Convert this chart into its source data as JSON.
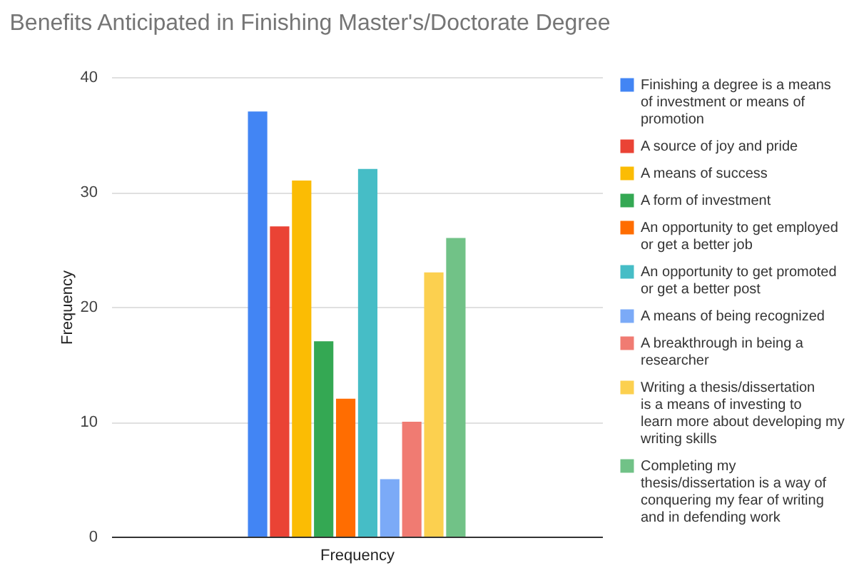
{
  "chart_data": {
    "type": "bar",
    "title": "Benefits Anticipated in Finishing Master's/Doctorate Degree",
    "xlabel": "Frequency",
    "ylabel": "Frequency",
    "categories": [
      null
    ],
    "series": [
      {
        "name": "Finishing a degree is a means of investment or means of promotion",
        "color": "#4285f4",
        "values": [
          37
        ]
      },
      {
        "name": "A source of joy and pride",
        "color": "#ea4335",
        "values": [
          27
        ]
      },
      {
        "name": "A means of success",
        "color": "#fbbc04",
        "values": [
          31
        ]
      },
      {
        "name": "A form of investment",
        "color": "#34a853",
        "values": [
          17
        ]
      },
      {
        "name": "An opportunity to get employed or get a better job",
        "color": "#ff6d01",
        "values": [
          12
        ]
      },
      {
        "name": "An opportunity to get promoted or get a better post",
        "color": "#46bdc6",
        "values": [
          32
        ]
      },
      {
        "name": "A means of being recognized",
        "color": "#7baaf7",
        "values": [
          5
        ]
      },
      {
        "name": "A breakthrough in being a researcher",
        "color": "#f07b72",
        "values": [
          10
        ]
      },
      {
        "name": "Writing a thesis/dissertation is a means of investing to learn more about developing my writing skills",
        "color": "#fcd04f",
        "values": [
          23
        ]
      },
      {
        "name": "Completing my thesis/dissertation is a way of conquering my fear of writing and in defending work",
        "color": "#71c287",
        "values": [
          26
        ]
      }
    ],
    "ylim": [
      0,
      40
    ],
    "yticks": [
      0,
      10,
      20,
      30,
      40
    ],
    "grid": "y",
    "legend": "right"
  }
}
